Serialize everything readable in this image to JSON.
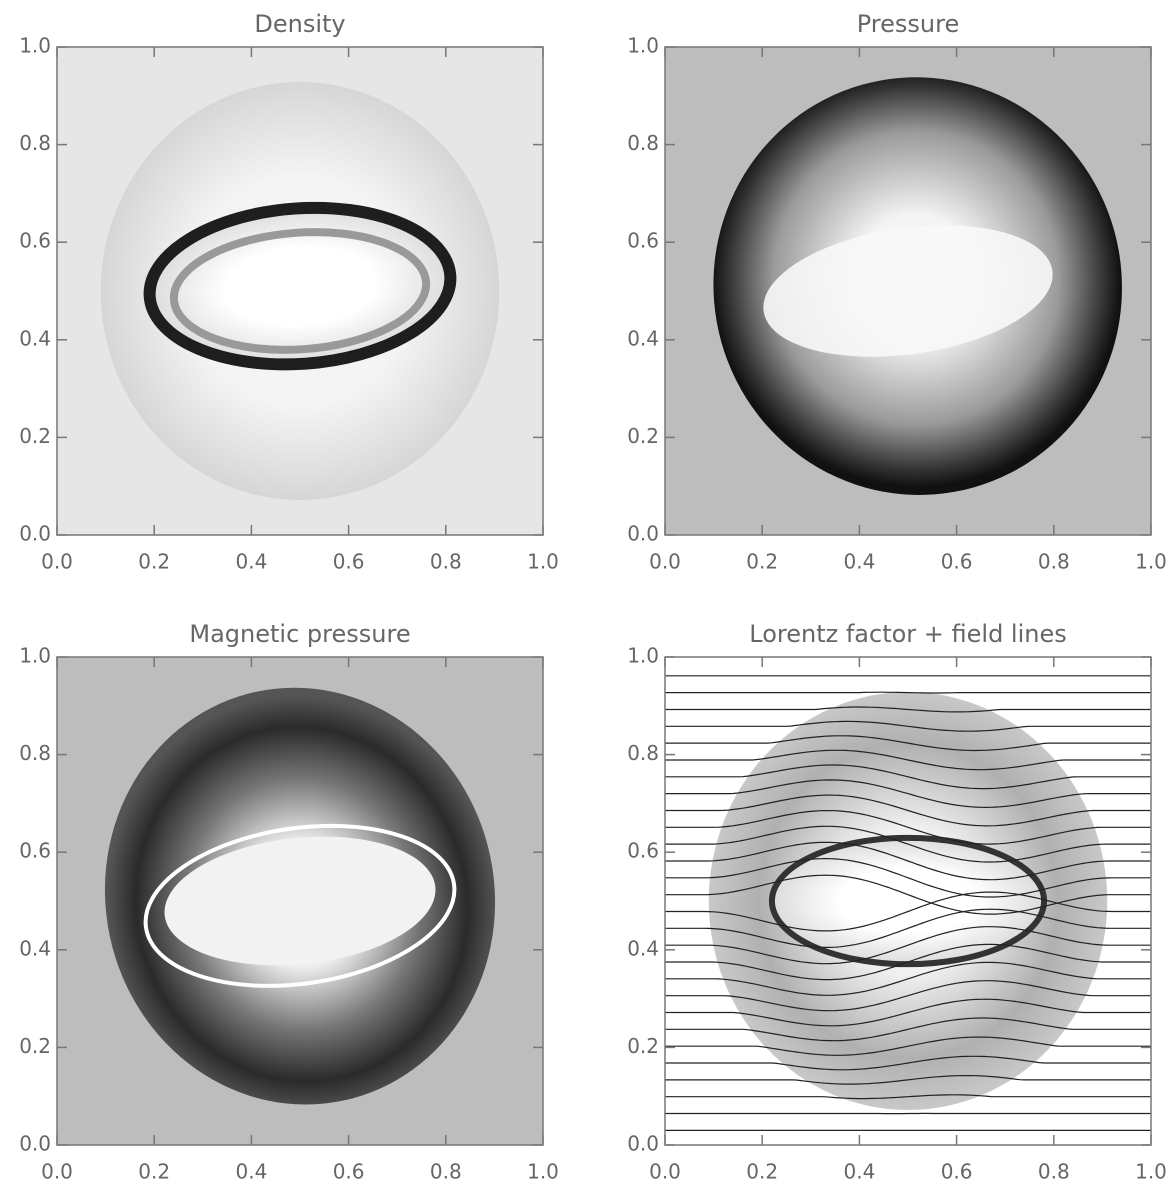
{
  "chart_data": [
    {
      "type": "image",
      "title": "Density",
      "background": "#e6e6e6",
      "xlim": [
        0,
        1
      ],
      "ylim": [
        0,
        1
      ],
      "xticks": [
        {
          "value": 0,
          "label": "0.0"
        },
        0.2,
        0.4,
        0.6,
        0.8,
        {
          "value": 1,
          "label": "1.0"
        }
      ],
      "yticks": [
        {
          "value": 0,
          "label": "0.0"
        },
        0.2,
        0.4,
        0.6,
        0.8,
        {
          "value": 1,
          "label": "1.0"
        }
      ]
    },
    {
      "type": "image",
      "title": "Pressure",
      "background": "#bdbdbd",
      "xlim": [
        0,
        1
      ],
      "ylim": [
        0,
        1
      ],
      "xticks": [
        {
          "value": 0,
          "label": "0.0"
        },
        0.2,
        0.4,
        0.6,
        0.8,
        {
          "value": 1,
          "label": "1.0"
        }
      ],
      "yticks": [
        {
          "value": 0,
          "label": "0.0"
        },
        0.2,
        0.4,
        0.6,
        0.8,
        {
          "value": 1,
          "label": "1.0"
        }
      ]
    },
    {
      "type": "image",
      "title": "Magnetic pressure",
      "background": "#bdbdbd",
      "xlim": [
        0,
        1
      ],
      "ylim": [
        0,
        1
      ],
      "xticks": [
        {
          "value": 0,
          "label": "0.0"
        },
        0.2,
        0.4,
        0.6,
        0.8,
        {
          "value": 1,
          "label": "1.0"
        }
      ],
      "yticks": [
        {
          "value": 0,
          "label": "0.0"
        },
        0.2,
        0.4,
        0.6,
        0.8,
        {
          "value": 1,
          "label": "1.0"
        }
      ]
    },
    {
      "type": "image",
      "title": "Lorentz factor + field lines",
      "background": "#ffffff",
      "xlim": [
        0,
        1
      ],
      "ylim": [
        0,
        1
      ],
      "xticks": [
        {
          "value": 0,
          "label": "0.0"
        },
        0.2,
        0.4,
        0.6,
        0.8,
        {
          "value": 1,
          "label": "1.0"
        }
      ],
      "yticks": [
        {
          "value": 0,
          "label": "0.0"
        },
        0.2,
        0.4,
        0.6,
        0.8,
        {
          "value": 1,
          "label": "1.0"
        }
      ]
    }
  ]
}
